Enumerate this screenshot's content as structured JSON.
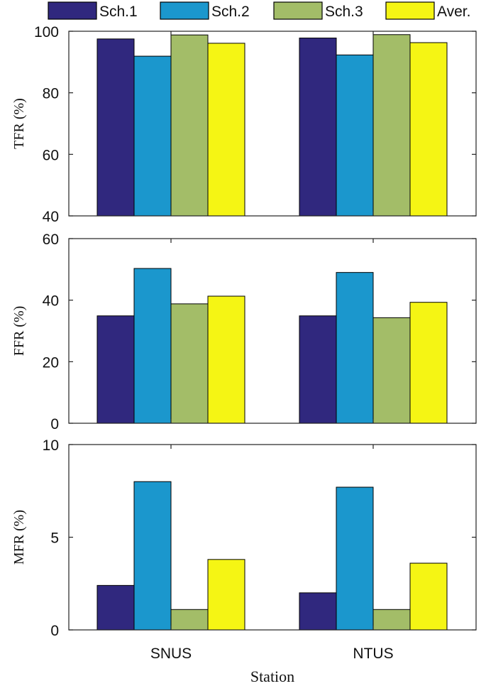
{
  "legend": [
    "Sch.1",
    "Sch.2",
    "Sch.3",
    "Aver."
  ],
  "colors": [
    "#30287E",
    "#1B97CD",
    "#A3BD68",
    "#F5F514"
  ],
  "xlabel": "Station",
  "chart_data": [
    {
      "type": "bar",
      "ylabel": "TFR (%)",
      "categories": [
        "SNUS",
        "NTUS"
      ],
      "ylim": [
        40,
        100
      ],
      "yticks": [
        40,
        60,
        80,
        100
      ],
      "series": [
        {
          "name": "Sch.1",
          "values": [
            97.5,
            97.8
          ]
        },
        {
          "name": "Sch.2",
          "values": [
            91.9,
            92.3
          ]
        },
        {
          "name": "Sch.3",
          "values": [
            98.8,
            98.9
          ]
        },
        {
          "name": "Aver.",
          "values": [
            96.1,
            96.3
          ]
        }
      ]
    },
    {
      "type": "bar",
      "ylabel": "FFR (%)",
      "categories": [
        "SNUS",
        "NTUS"
      ],
      "ylim": [
        0,
        60
      ],
      "yticks": [
        0,
        20,
        40,
        60
      ],
      "series": [
        {
          "name": "Sch.1",
          "values": [
            34.9,
            34.9
          ]
        },
        {
          "name": "Sch.2",
          "values": [
            50.3,
            49.0
          ]
        },
        {
          "name": "Sch.3",
          "values": [
            38.8,
            34.3
          ]
        },
        {
          "name": "Aver.",
          "values": [
            41.3,
            39.3
          ]
        }
      ]
    },
    {
      "type": "bar",
      "ylabel": "MFR (%)",
      "categories": [
        "SNUS",
        "NTUS"
      ],
      "ylim": [
        0,
        10
      ],
      "yticks": [
        0,
        5,
        10
      ],
      "series": [
        {
          "name": "Sch.1",
          "values": [
            2.4,
            2.0
          ]
        },
        {
          "name": "Sch.2",
          "values": [
            8.0,
            7.7
          ]
        },
        {
          "name": "Sch.3",
          "values": [
            1.1,
            1.1
          ]
        },
        {
          "name": "Aver.",
          "values": [
            3.8,
            3.6
          ]
        }
      ]
    }
  ]
}
